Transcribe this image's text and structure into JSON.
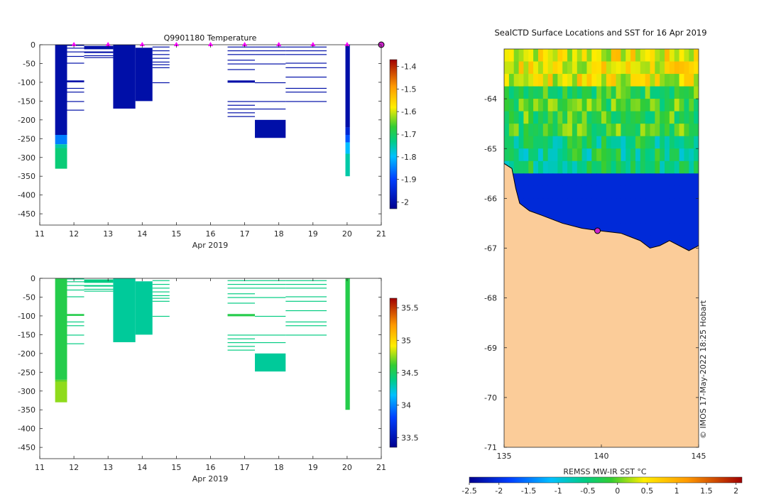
{
  "chart_data": [
    {
      "type": "heatmap",
      "title": "Q9901180  Temperature",
      "xlabel": "Apr 2019",
      "x_ticks": [
        "11",
        "12",
        "13",
        "14",
        "15",
        "16",
        "17",
        "18",
        "19",
        "20",
        "21"
      ],
      "xlim": [
        11,
        21
      ],
      "y_ticks": [
        "0",
        "-50",
        "-100",
        "-150",
        "-200",
        "-250",
        "-300",
        "-350",
        "-400",
        "-450"
      ],
      "ylim": [
        -480,
        0
      ],
      "colorbar": {
        "ticks": [
          "-1.4",
          "-1.5",
          "-1.6",
          "-1.7",
          "-1.8",
          "-1.9",
          "-2"
        ],
        "range": [
          -2.03,
          -1.37
        ]
      },
      "surface_markers": [
        12.0,
        13.0,
        14.0,
        15.0,
        16.0,
        17.0,
        18.0,
        19.0,
        20.0
      ],
      "end_marker": 21.0,
      "profiles": [
        {
          "x0": 11.45,
          "x1": 11.8,
          "segments": [
            [
              0,
              -240,
              -2.0
            ],
            [
              -240,
              -265,
              -1.85
            ],
            [
              -265,
              -275,
              -1.75
            ],
            [
              -275,
              -330,
              -1.72
            ]
          ]
        },
        {
          "x0": 11.8,
          "x1": 12.3,
          "segments": [
            [
              0,
              -3,
              -2.0
            ],
            [
              -8,
              -10,
              -2.0
            ],
            [
              -18,
              -20,
              -2.0
            ],
            [
              -30,
              -32,
              -2.0
            ],
            [
              -48,
              -50,
              -2.0
            ],
            [
              -95,
              -100,
              -2.0
            ],
            [
              -115,
              -117,
              -2.0
            ],
            [
              -125,
              -127,
              -2.0
            ],
            [
              -150,
              -152,
              -2.0
            ],
            [
              -173,
              -175,
              -2.0
            ]
          ]
        },
        {
          "x0": 12.3,
          "x1": 13.15,
          "segments": [
            [
              -3,
              -12,
              -2.0
            ],
            [
              -18,
              -22,
              -2.0
            ],
            [
              -28,
              -30,
              -2.0
            ],
            [
              -33,
              -35,
              -2.0
            ]
          ]
        },
        {
          "x0": 13.15,
          "x1": 13.8,
          "segments": [
            [
              0,
              -170,
              -2.0
            ]
          ]
        },
        {
          "x0": 13.8,
          "x1": 14.3,
          "segments": [
            [
              -8,
              -150,
              -2.0
            ]
          ]
        },
        {
          "x0": 14.3,
          "x1": 14.8,
          "segments": [
            [
              -5,
              -6,
              -2.0
            ],
            [
              -15,
              -16,
              -2.0
            ],
            [
              -25,
              -26,
              -2.0
            ],
            [
              -35,
              -36,
              -2.0
            ],
            [
              -45,
              -46,
              -2.0
            ],
            [
              -52,
              -53,
              -2.0
            ],
            [
              -60,
              -61,
              -2.0
            ],
            [
              -100,
              -101,
              -2.0
            ]
          ]
        },
        {
          "x0": 16.5,
          "x1": 17.3,
          "segments": [
            [
              -5,
              -6,
              -2.0
            ],
            [
              -15,
              -16,
              -2.0
            ],
            [
              -25,
              -26,
              -2.0
            ],
            [
              -40,
              -41,
              -2.0
            ],
            [
              -50,
              -51,
              -2.0
            ],
            [
              -65,
              -66,
              -2.0
            ],
            [
              -95,
              -101,
              -2.0
            ],
            [
              -150,
              -152,
              -2.0
            ],
            [
              -160,
              -161,
              -2.0
            ],
            [
              -170,
              -171,
              -2.0
            ],
            [
              -180,
              -181,
              -2.0
            ],
            [
              -190,
              -191,
              -2.0
            ]
          ]
        },
        {
          "x0": 17.3,
          "x1": 18.2,
          "segments": [
            [
              -5,
              -6,
              -2.0
            ],
            [
              -15,
              -16,
              -2.0
            ],
            [
              -25,
              -26,
              -2.0
            ],
            [
              -50,
              -52,
              -2.0
            ],
            [
              -100,
              -101,
              -2.0
            ],
            [
              -150,
              -151,
              -2.0
            ],
            [
              -170,
              -171,
              -2.0
            ],
            [
              -200,
              -248,
              -2.0
            ]
          ]
        },
        {
          "x0": 18.2,
          "x1": 19.4,
          "segments": [
            [
              -5,
              -6,
              -2.0
            ],
            [
              -15,
              -16,
              -2.0
            ],
            [
              -25,
              -26,
              -2.0
            ],
            [
              -48,
              -50,
              -2.0
            ],
            [
              -60,
              -61,
              -2.0
            ],
            [
              -85,
              -86,
              -2.0
            ],
            [
              -115,
              -117,
              -2.0
            ],
            [
              -125,
              -127,
              -2.0
            ],
            [
              -150,
              -151,
              -2.0
            ]
          ]
        },
        {
          "x0": 19.95,
          "x1": 20.08,
          "segments": [
            [
              0,
              -220,
              -2.0
            ],
            [
              -220,
              -240,
              -1.95
            ],
            [
              -240,
              -260,
              -1.88
            ],
            [
              -260,
              -290,
              -1.8
            ],
            [
              -290,
              -350,
              -1.75
            ]
          ]
        }
      ]
    },
    {
      "type": "heatmap",
      "title": "",
      "xlabel": "Apr 2019",
      "x_ticks": [
        "11",
        "12",
        "13",
        "14",
        "15",
        "16",
        "17",
        "18",
        "19",
        "20",
        "21"
      ],
      "xlim": [
        11,
        21
      ],
      "y_ticks": [
        "0",
        "-50",
        "-100",
        "-150",
        "-200",
        "-250",
        "-300",
        "-350",
        "-400",
        "-450"
      ],
      "ylim": [
        -480,
        0
      ],
      "colorbar": {
        "ticks": [
          "35.5",
          "35",
          "34.5",
          "34",
          "33.5"
        ],
        "range": [
          33.35,
          35.65
        ]
      },
      "profiles": [
        {
          "x0": 11.45,
          "x1": 11.8,
          "segments": [
            [
              0,
              -270,
              34.55
            ],
            [
              -270,
              -275,
              34.68
            ],
            [
              -275,
              -330,
              34.75
            ]
          ]
        },
        {
          "x0": 11.8,
          "x1": 12.3,
          "segments": [
            [
              0,
              -3,
              34.4
            ],
            [
              -8,
              -10,
              34.4
            ],
            [
              -18,
              -20,
              34.4
            ],
            [
              -30,
              -32,
              34.4
            ],
            [
              -48,
              -50,
              34.4
            ],
            [
              -95,
              -100,
              34.55
            ],
            [
              -115,
              -117,
              34.4
            ],
            [
              -125,
              -127,
              34.4
            ],
            [
              -150,
              -152,
              34.4
            ],
            [
              -173,
              -175,
              34.4
            ]
          ]
        },
        {
          "x0": 12.3,
          "x1": 13.15,
          "segments": [
            [
              -3,
              -12,
              34.4
            ],
            [
              -18,
              -22,
              34.4
            ],
            [
              -28,
              -30,
              34.4
            ],
            [
              -33,
              -35,
              34.4
            ]
          ]
        },
        {
          "x0": 13.15,
          "x1": 13.8,
          "segments": [
            [
              0,
              -170,
              34.35
            ]
          ]
        },
        {
          "x0": 13.8,
          "x1": 14.3,
          "segments": [
            [
              -8,
              -150,
              34.35
            ]
          ]
        },
        {
          "x0": 14.3,
          "x1": 14.8,
          "segments": [
            [
              -5,
              -6,
              34.4
            ],
            [
              -15,
              -16,
              34.4
            ],
            [
              -25,
              -26,
              34.4
            ],
            [
              -35,
              -36,
              34.4
            ],
            [
              -45,
              -46,
              34.4
            ],
            [
              -52,
              -53,
              34.4
            ],
            [
              -60,
              -61,
              34.4
            ],
            [
              -100,
              -101,
              34.4
            ]
          ]
        },
        {
          "x0": 16.5,
          "x1": 17.3,
          "segments": [
            [
              -5,
              -6,
              34.4
            ],
            [
              -15,
              -16,
              34.4
            ],
            [
              -25,
              -26,
              34.4
            ],
            [
              -40,
              -41,
              34.4
            ],
            [
              -50,
              -51,
              34.4
            ],
            [
              -65,
              -66,
              34.4
            ],
            [
              -95,
              -101,
              34.55
            ],
            [
              -150,
              -152,
              34.4
            ],
            [
              -160,
              -161,
              34.4
            ],
            [
              -170,
              -171,
              34.4
            ],
            [
              -180,
              -181,
              34.4
            ],
            [
              -190,
              -191,
              34.4
            ]
          ]
        },
        {
          "x0": 17.3,
          "x1": 18.2,
          "segments": [
            [
              -5,
              -6,
              34.4
            ],
            [
              -15,
              -16,
              34.4
            ],
            [
              -25,
              -26,
              34.4
            ],
            [
              -50,
              -52,
              34.4
            ],
            [
              -100,
              -101,
              34.4
            ],
            [
              -150,
              -151,
              34.4
            ],
            [
              -170,
              -171,
              34.4
            ],
            [
              -200,
              -248,
              34.35
            ]
          ]
        },
        {
          "x0": 18.2,
          "x1": 19.4,
          "segments": [
            [
              -5,
              -6,
              34.4
            ],
            [
              -15,
              -16,
              34.4
            ],
            [
              -25,
              -26,
              34.4
            ],
            [
              -48,
              -50,
              34.4
            ],
            [
              -60,
              -61,
              34.4
            ],
            [
              -85,
              -86,
              34.4
            ],
            [
              -115,
              -117,
              34.4
            ],
            [
              -125,
              -127,
              34.4
            ],
            [
              -150,
              -151,
              34.4
            ]
          ]
        },
        {
          "x0": 19.95,
          "x1": 20.08,
          "segments": [
            [
              0,
              -350,
              34.55
            ]
          ]
        }
      ]
    },
    {
      "type": "heatmap",
      "title": "SealCTD Surface Locations and SST for 16 Apr 2019",
      "x_ticks": [
        "135",
        "140",
        "145"
      ],
      "xlim": [
        135,
        145
      ],
      "y_ticks": [
        "-64",
        "-65",
        "-66",
        "-67",
        "-68",
        "-69",
        "-70",
        "-71"
      ],
      "ylim": [
        -71,
        -63
      ],
      "colorbar": {
        "label": "REMSS MW-IR SST °C",
        "ticks": [
          "-2.5",
          "-2",
          "-1.5",
          "-1",
          "-0.5",
          "0",
          "0.5",
          "1",
          "1.5",
          "2"
        ],
        "range": [
          -2.5,
          2.1
        ]
      },
      "ice_edge_lat": [
        -65.3,
        -65.2
      ],
      "coast": [
        [
          135,
          -65.3
        ],
        [
          135.4,
          -65.4
        ],
        [
          135.6,
          -65.8
        ],
        [
          135.8,
          -66.1
        ],
        [
          136.3,
          -66.25
        ],
        [
          137,
          -66.35
        ],
        [
          138,
          -66.5
        ],
        [
          139,
          -66.6
        ],
        [
          139.9,
          -66.65
        ],
        [
          141,
          -66.7
        ],
        [
          142,
          -66.85
        ],
        [
          142.5,
          -67.0
        ],
        [
          143,
          -66.95
        ],
        [
          143.5,
          -66.85
        ],
        [
          144,
          -66.95
        ],
        [
          144.5,
          -67.05
        ],
        [
          145,
          -66.95
        ]
      ],
      "sst_bands": [
        {
          "lat_top": -63,
          "lat_bottom": -63.7,
          "value": 0.6
        },
        {
          "lat_top": -63.7,
          "lat_bottom": -64.6,
          "value": 0.0
        },
        {
          "lat_top": -64.6,
          "lat_bottom": -65.3,
          "value": -0.3
        },
        {
          "lat_top": -65.3,
          "lat_bottom": -67.0,
          "value": -1.9
        }
      ],
      "land_color": "#fbcc99",
      "credit": "© IMOS 17-May-2022 18:25 Hobart",
      "ctd_location": [
        139.8,
        -66.65
      ]
    }
  ]
}
